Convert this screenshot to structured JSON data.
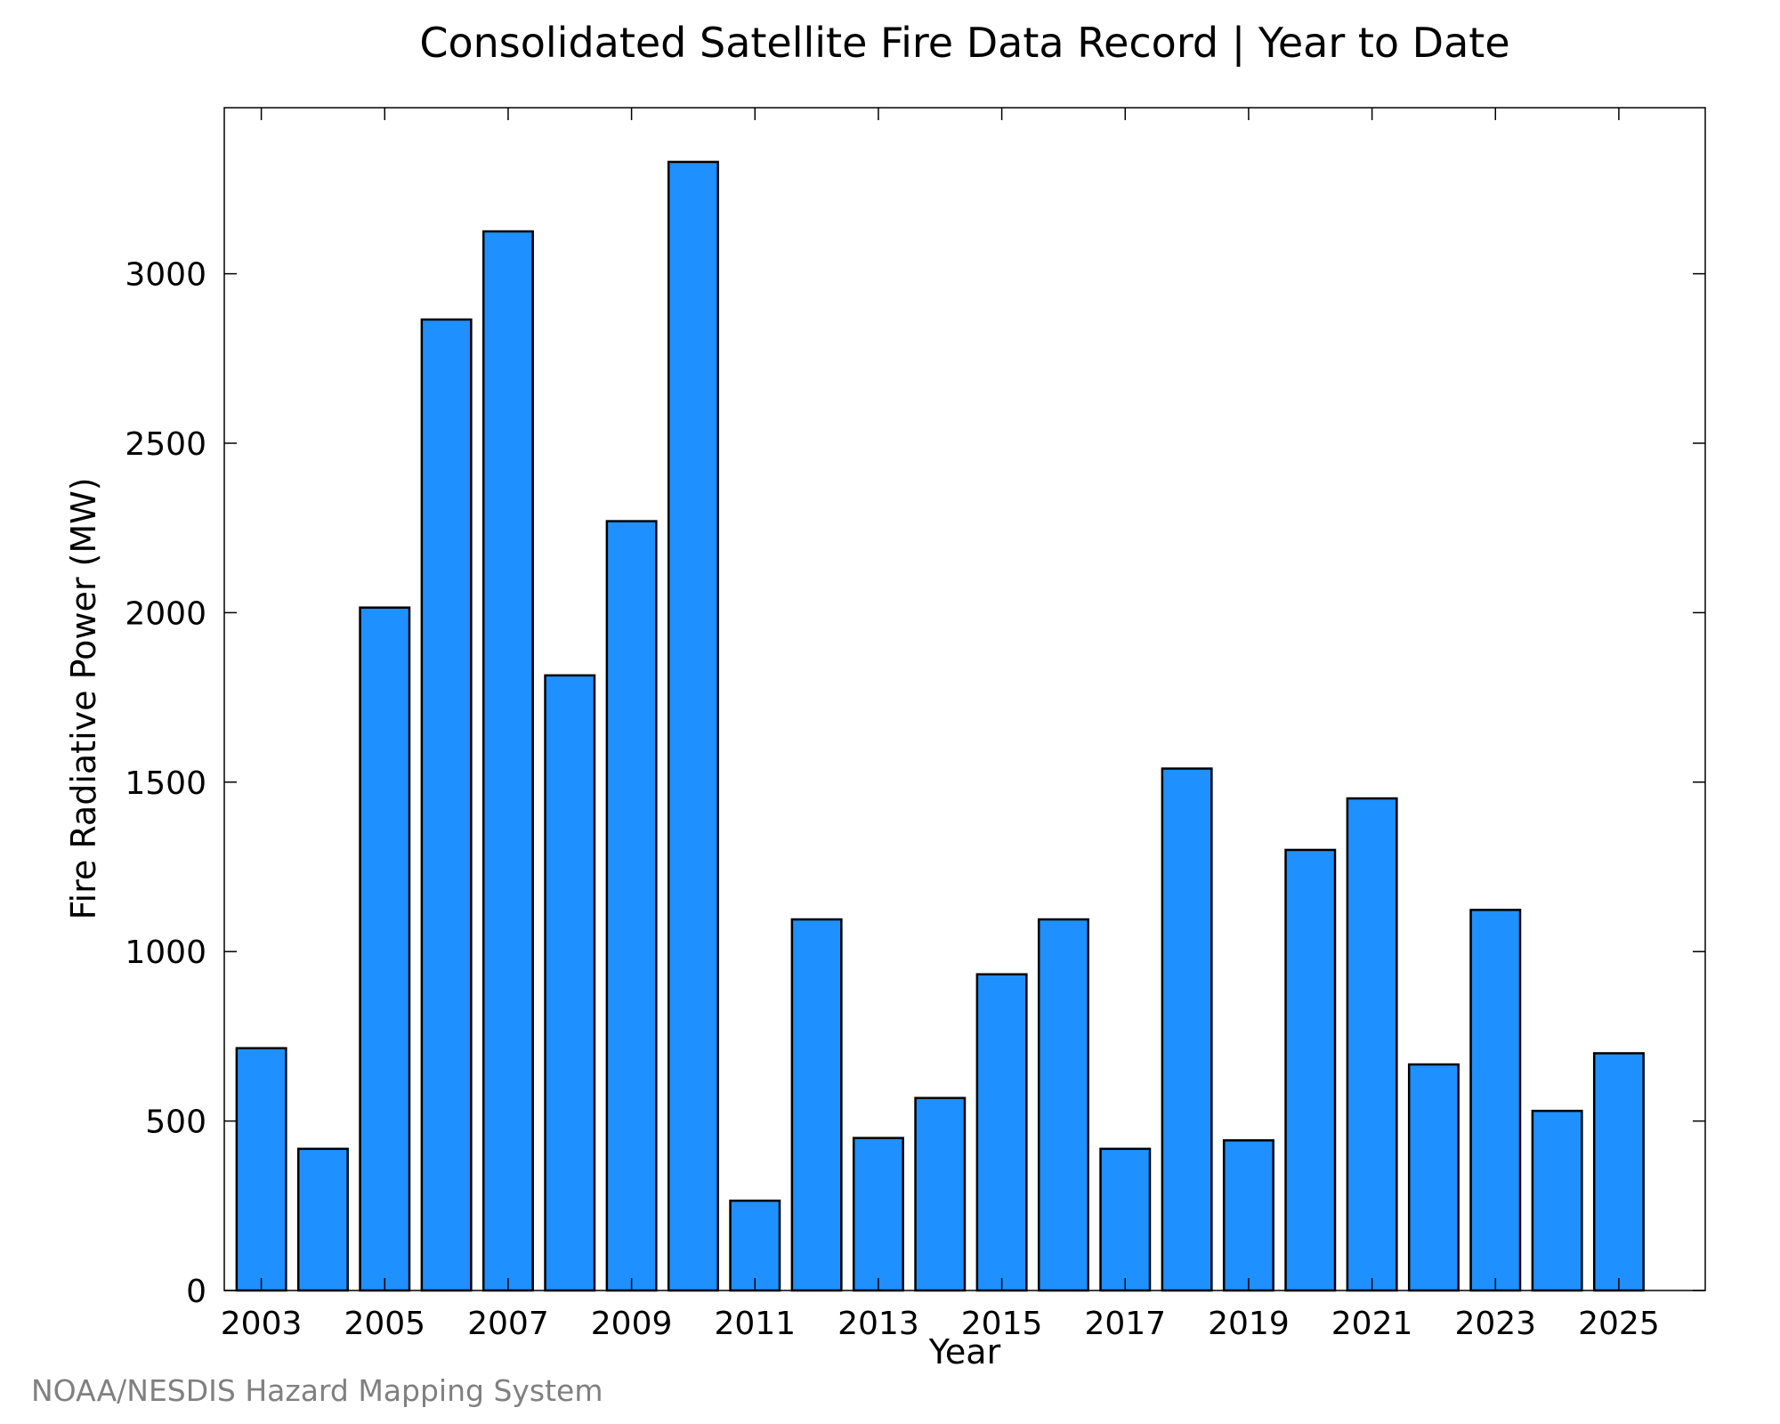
{
  "chart_data": {
    "type": "bar",
    "title": "Consolidated Satellite Fire Data Record | Year to Date",
    "xlabel": "Year",
    "ylabel": "Fire Radiative Power (MW)",
    "categories": [
      2003,
      2004,
      2005,
      2006,
      2007,
      2008,
      2009,
      2010,
      2011,
      2012,
      2013,
      2014,
      2015,
      2016,
      2017,
      2018,
      2019,
      2020,
      2021,
      2022,
      2023,
      2024,
      2025
    ],
    "values": [
      715,
      418,
      2015,
      2865,
      3125,
      1815,
      2270,
      3330,
      265,
      1095,
      450,
      568,
      933,
      1095,
      418,
      1540,
      443,
      1300,
      1452,
      667,
      1123,
      530,
      700
    ],
    "xticks": [
      "2003",
      "2005",
      "2007",
      "2009",
      "2011",
      "2013",
      "2015",
      "2017",
      "2019",
      "2021",
      "2023",
      "2025"
    ],
    "yticks": [
      "0",
      "500",
      "1000",
      "1500",
      "2000",
      "2500",
      "3000"
    ],
    "ytick_values": [
      0,
      500,
      1000,
      1500,
      2000,
      2500,
      3000
    ],
    "xlim": [
      2002.4,
      2026.4
    ],
    "ylim": [
      0,
      3490
    ],
    "grid": false,
    "legend": "none",
    "bar_color": "#1e90ff",
    "bar_edge_color": "#000000"
  },
  "credit": "NOAA/NESDIS Hazard Mapping System"
}
